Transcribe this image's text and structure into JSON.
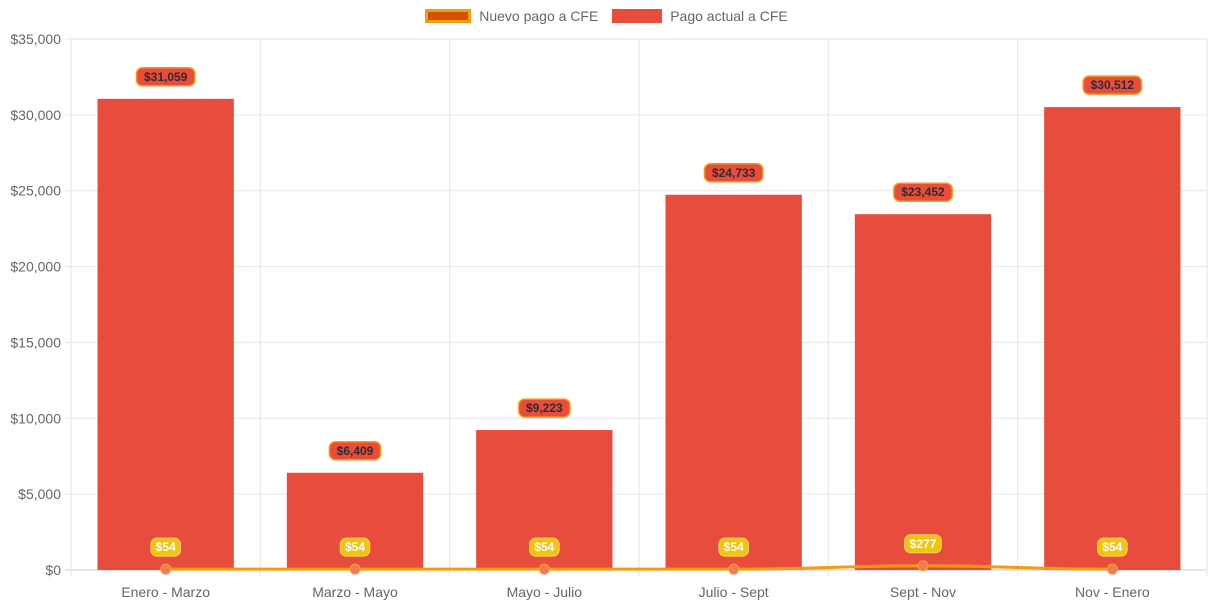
{
  "chart_data": {
    "type": "bar",
    "title": "",
    "xlabel": "",
    "ylabel": "",
    "ylim": [
      0,
      35000
    ],
    "y_ticks": [
      0,
      5000,
      10000,
      15000,
      20000,
      25000,
      30000,
      35000
    ],
    "y_tick_labels": [
      "$0",
      "$5,000",
      "$10,000",
      "$15,000",
      "$20,000",
      "$25,000",
      "$30,000",
      "$35,000"
    ],
    "grid": true,
    "legend_position": "top-center",
    "categories": [
      "Enero - Marzo",
      "Marzo - Mayo",
      "Mayo - Julio",
      "Julio - Sept",
      "Sept - Nov",
      "Nov - Enero"
    ],
    "series": [
      {
        "name": "Nuevo pago a CFE",
        "type": "line",
        "values": [
          54,
          54,
          54,
          54,
          277,
          54
        ],
        "labels": [
          "$54",
          "$54",
          "$54",
          "$54",
          "$277",
          "$54"
        ],
        "color": "#f39c12",
        "fill": "#d35400"
      },
      {
        "name": "Pago actual a CFE",
        "type": "bar",
        "values": [
          31059,
          6409,
          9223,
          24733,
          23452,
          30512
        ],
        "labels": [
          "$31,059",
          "$6,409",
          "$9,223",
          "$24,733",
          "$23,452",
          "$30,512"
        ],
        "color": "#e74c3c"
      }
    ]
  }
}
